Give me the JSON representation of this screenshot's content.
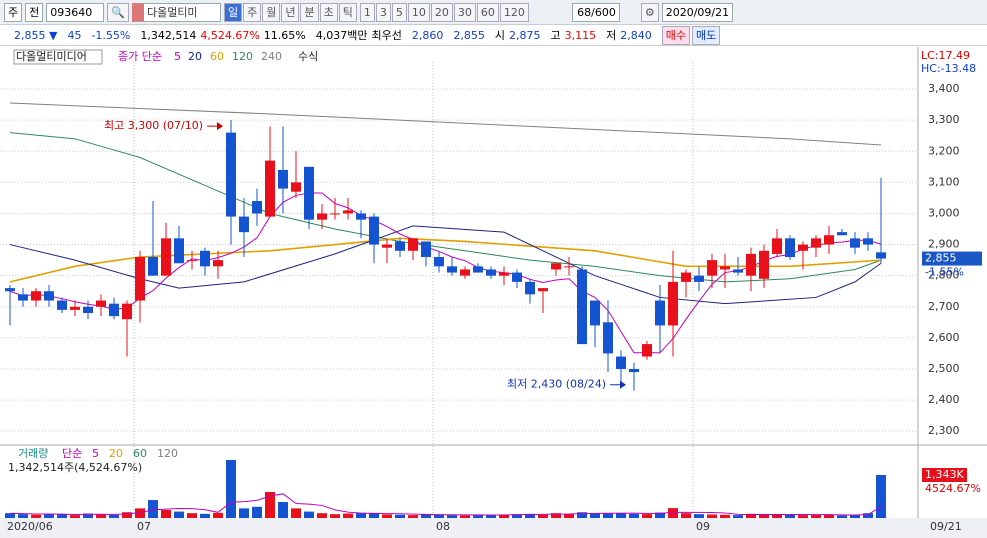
{
  "toolbar": {
    "market": "주",
    "prev": "전",
    "code": "093640",
    "name": "다올멀티미",
    "periods": [
      "일",
      "주",
      "월",
      "년",
      "분",
      "초",
      "틱"
    ],
    "units": [
      "1",
      "3",
      "5",
      "10",
      "20",
      "30",
      "60",
      "120"
    ],
    "count": "68/600",
    "date": "2020/09/21"
  },
  "quote": {
    "price": "2,855 ▼",
    "change": "45",
    "rate": "-1.55%",
    "volume": "1,342,514",
    "volume_rate": "4,524.67%",
    "turnover": "11.65%",
    "amount": "4,037백만",
    "best_label": "최우선",
    "ask": "2,860",
    "bid": "2,855",
    "open_label": "시",
    "open": "2,875",
    "high_label": "고",
    "high": "3,115",
    "low_label": "저",
    "low": "2,840",
    "buy": "매수",
    "sell": "매도"
  },
  "chart_data": {
    "type": "candlestick",
    "title": "다올멀티미디어",
    "ma_label": "종가 단순",
    "formula": "수식",
    "lc": "LC:17.49",
    "hc": "HC:-13.48",
    "candles": {
      "open": [
        2760,
        2740,
        2720,
        2750,
        2720,
        2690,
        2700,
        2700,
        2710,
        2660,
        2720,
        2860,
        2800,
        2920,
        2850,
        2880,
        2830,
        3260,
        2990,
        3040,
        2990,
        3140,
        3070,
        3150,
        2980,
        3000,
        3000,
        3000,
        2990,
        2890,
        2910,
        2880,
        2910,
        2860,
        2830,
        2800,
        2830,
        2820,
        2800,
        2810,
        2780,
        2750,
        2820,
        2830,
        2820,
        2720,
        2650,
        2540,
        2500,
        2540,
        2720,
        2640,
        2780,
        2800,
        2800,
        2820,
        2820,
        2800,
        2790,
        2870,
        2920,
        2880,
        2890,
        2900,
        2940,
        2920,
        2920,
        2875
      ],
      "high": [
        2770,
        2760,
        2760,
        2770,
        2730,
        2720,
        2720,
        2740,
        2730,
        2720,
        2880,
        3040,
        2970,
        2960,
        2880,
        2890,
        2880,
        3300,
        3050,
        3080,
        3280,
        3280,
        3200,
        3150,
        3030,
        3050,
        3050,
        3010,
        3000,
        2920,
        2920,
        2920,
        2910,
        2880,
        2860,
        2830,
        2840,
        2830,
        2830,
        2820,
        2790,
        2760,
        2840,
        2860,
        2830,
        2720,
        2720,
        2560,
        2520,
        2590,
        2770,
        2880,
        2820,
        2830,
        2870,
        2870,
        2860,
        2890,
        2900,
        2950,
        2930,
        2910,
        2930,
        2960,
        2950,
        2940,
        2940,
        3115
      ],
      "low": [
        2640,
        2700,
        2700,
        2700,
        2680,
        2670,
        2660,
        2670,
        2660,
        2540,
        2650,
        2800,
        2800,
        2840,
        2820,
        2800,
        2790,
        2900,
        2860,
        2960,
        2990,
        3000,
        3050,
        2950,
        2950,
        2980,
        2980,
        2920,
        2840,
        2840,
        2860,
        2850,
        2830,
        2810,
        2800,
        2790,
        2810,
        2790,
        2770,
        2760,
        2710,
        2680,
        2800,
        2800,
        2580,
        2570,
        2490,
        2440,
        2430,
        2530,
        2550,
        2540,
        2730,
        2750,
        2760,
        2760,
        2800,
        2750,
        2760,
        2860,
        2850,
        2820,
        2860,
        2870,
        2930,
        2870,
        2880,
        2840
      ],
      "close": [
        2750,
        2720,
        2750,
        2720,
        2690,
        2700,
        2680,
        2720,
        2670,
        2710,
        2860,
        2800,
        2920,
        2840,
        2850,
        2830,
        2850,
        2990,
        2940,
        3000,
        3170,
        3080,
        3100,
        2980,
        3000,
        3000,
        3010,
        2980,
        2900,
        2900,
        2880,
        2920,
        2860,
        2830,
        2810,
        2820,
        2810,
        2800,
        2810,
        2780,
        2740,
        2760,
        2840,
        2830,
        2580,
        2640,
        2550,
        2500,
        2490,
        2580,
        2640,
        2780,
        2810,
        2780,
        2850,
        2830,
        2810,
        2870,
        2880,
        2920,
        2860,
        2900,
        2920,
        2930,
        2930,
        2890,
        2900,
        2855
      ]
    },
    "ma5": {
      "name": "5",
      "color": "#c000c0"
    },
    "ma": [
      {
        "name": "20",
        "color": "#1a237e",
        "x": [
          0,
          5,
          10,
          13,
          18,
          25,
          31,
          38,
          45,
          50,
          55,
          62,
          65,
          67
        ],
        "values": [
          2900,
          2850,
          2790,
          2760,
          2780,
          2870,
          2960,
          2940,
          2800,
          2730,
          2710,
          2730,
          2780,
          2840
        ]
      },
      {
        "name": "60",
        "color": "#e0a000",
        "x": [
          0,
          5,
          10,
          20,
          30,
          35,
          45,
          52,
          60,
          67
        ],
        "values": [
          2780,
          2830,
          2860,
          2880,
          2920,
          2910,
          2880,
          2830,
          2830,
          2850
        ]
      },
      {
        "name": "120",
        "color": "#2e8b57",
        "x": [
          0,
          5,
          10,
          15,
          20,
          25,
          30,
          35,
          40,
          45,
          50,
          55,
          60,
          65,
          67
        ],
        "values": [
          3260,
          3240,
          3180,
          3090,
          3000,
          2950,
          2910,
          2880,
          2850,
          2830,
          2800,
          2780,
          2790,
          2820,
          2850
        ]
      },
      {
        "name": "240",
        "color": "#808080",
        "x": [
          0,
          20,
          40,
          60,
          67
        ],
        "values": [
          3355,
          3320,
          3280,
          3240,
          3220
        ]
      }
    ],
    "ylim": [
      2262,
      3487
    ],
    "yticks": [
      {
        "value": 3400,
        "label": "3,400"
      },
      {
        "value": 3300,
        "label": "3,300"
      },
      {
        "value": 3200,
        "label": "3,200"
      },
      {
        "value": 3100,
        "label": "3,100"
      },
      {
        "value": 3000,
        "label": "3,000"
      },
      {
        "value": 2900,
        "label": "2,900"
      },
      {
        "value": 2800,
        "label": "2,800"
      },
      {
        "value": 2700,
        "label": "2,700"
      },
      {
        "value": 2600,
        "label": "2,600"
      },
      {
        "value": 2500,
        "label": "2,500"
      },
      {
        "value": 2400,
        "label": "2,400"
      },
      {
        "value": 2300,
        "label": "2,300"
      }
    ],
    "last": {
      "value": 2855,
      "label": "2,855",
      "rate": "-1.55%"
    },
    "annotations": [
      {
        "text": "최고 3,300 (07/10)",
        "x": 17,
        "value": 3300,
        "color": "#d00000"
      },
      {
        "text": "최저 2,430 (08/24)",
        "x": 48,
        "value": 2430,
        "color": "#1030c0"
      }
    ],
    "xticks": [
      {
        "value": 0,
        "label": "2020/06"
      },
      {
        "value": 10,
        "label": "07"
      },
      {
        "value": 33,
        "label": "08"
      },
      {
        "value": 53,
        "label": "09"
      },
      {
        "value": 67,
        "label": "09/21"
      }
    ]
  },
  "volume": {
    "title": "거래량",
    "ma_label": "단순",
    "ma_names": [
      "5",
      "20",
      "60",
      "120"
    ],
    "summary": "1,342,514주(4,524.67%)",
    "last_label": "1,343K",
    "last_rate": "4524.67%",
    "values": [
      150000,
      120000,
      100000,
      130000,
      110000,
      90000,
      140000,
      120000,
      100000,
      180000,
      300000,
      560000,
      250000,
      200000,
      150000,
      130000,
      160000,
      1811000,
      300000,
      350000,
      812000,
      500000,
      300000,
      200000,
      150000,
      120000,
      140000,
      160000,
      150000,
      110000,
      100000,
      90000,
      120000,
      100000,
      90000,
      80000,
      90000,
      100000,
      110000,
      120000,
      130000,
      100000,
      150000,
      120000,
      180000,
      150000,
      140000,
      160000,
      130000,
      120000,
      170000,
      310000,
      150000,
      120000,
      110000,
      100000,
      90000,
      130000,
      110000,
      120000,
      100000,
      90000,
      110000,
      100000,
      80000,
      90000,
      150000,
      1342514
    ]
  }
}
